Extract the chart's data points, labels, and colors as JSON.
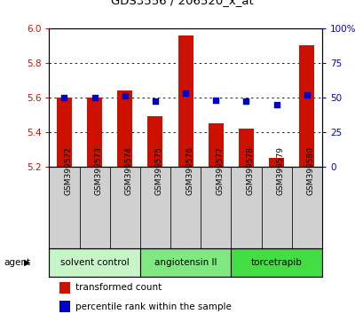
{
  "title": "GDS3556 / 206520_x_at",
  "samples": [
    "GSM399572",
    "GSM399573",
    "GSM399574",
    "GSM399575",
    "GSM399576",
    "GSM399577",
    "GSM399578",
    "GSM399579",
    "GSM399580"
  ],
  "transformed_counts": [
    5.6,
    5.6,
    5.64,
    5.49,
    5.96,
    5.45,
    5.42,
    5.25,
    5.9
  ],
  "percentile_ranks": [
    50,
    50,
    51,
    47,
    53,
    48,
    47,
    45,
    52
  ],
  "ylim_left": [
    5.2,
    6.0
  ],
  "ylim_right": [
    0,
    100
  ],
  "yticks_left": [
    5.2,
    5.4,
    5.6,
    5.8,
    6.0
  ],
  "yticks_right": [
    0,
    25,
    50,
    75,
    100
  ],
  "yticklabels_right": [
    "0",
    "25",
    "50",
    "75",
    "100%"
  ],
  "groups": [
    {
      "label": "solvent control",
      "samples": [
        0,
        1,
        2
      ],
      "color": "#c8f5c8"
    },
    {
      "label": "angiotensin II",
      "samples": [
        3,
        4,
        5
      ],
      "color": "#80e880"
    },
    {
      "label": "torcetrapib",
      "samples": [
        6,
        7,
        8
      ],
      "color": "#44dd44"
    }
  ],
  "bar_color": "#cc1100",
  "dot_color": "#0000cc",
  "bar_width": 0.5,
  "bar_bottom": 5.2,
  "agent_label": "agent",
  "legend_bar_label": "transformed count",
  "legend_dot_label": "percentile rank within the sample",
  "tick_color_left": "#cc1100",
  "tick_color_right": "#0000cc",
  "grid_color": "#000000",
  "bg_color": "#ffffff",
  "plot_bg": "#ffffff",
  "sample_bg": "#d0d0d0"
}
